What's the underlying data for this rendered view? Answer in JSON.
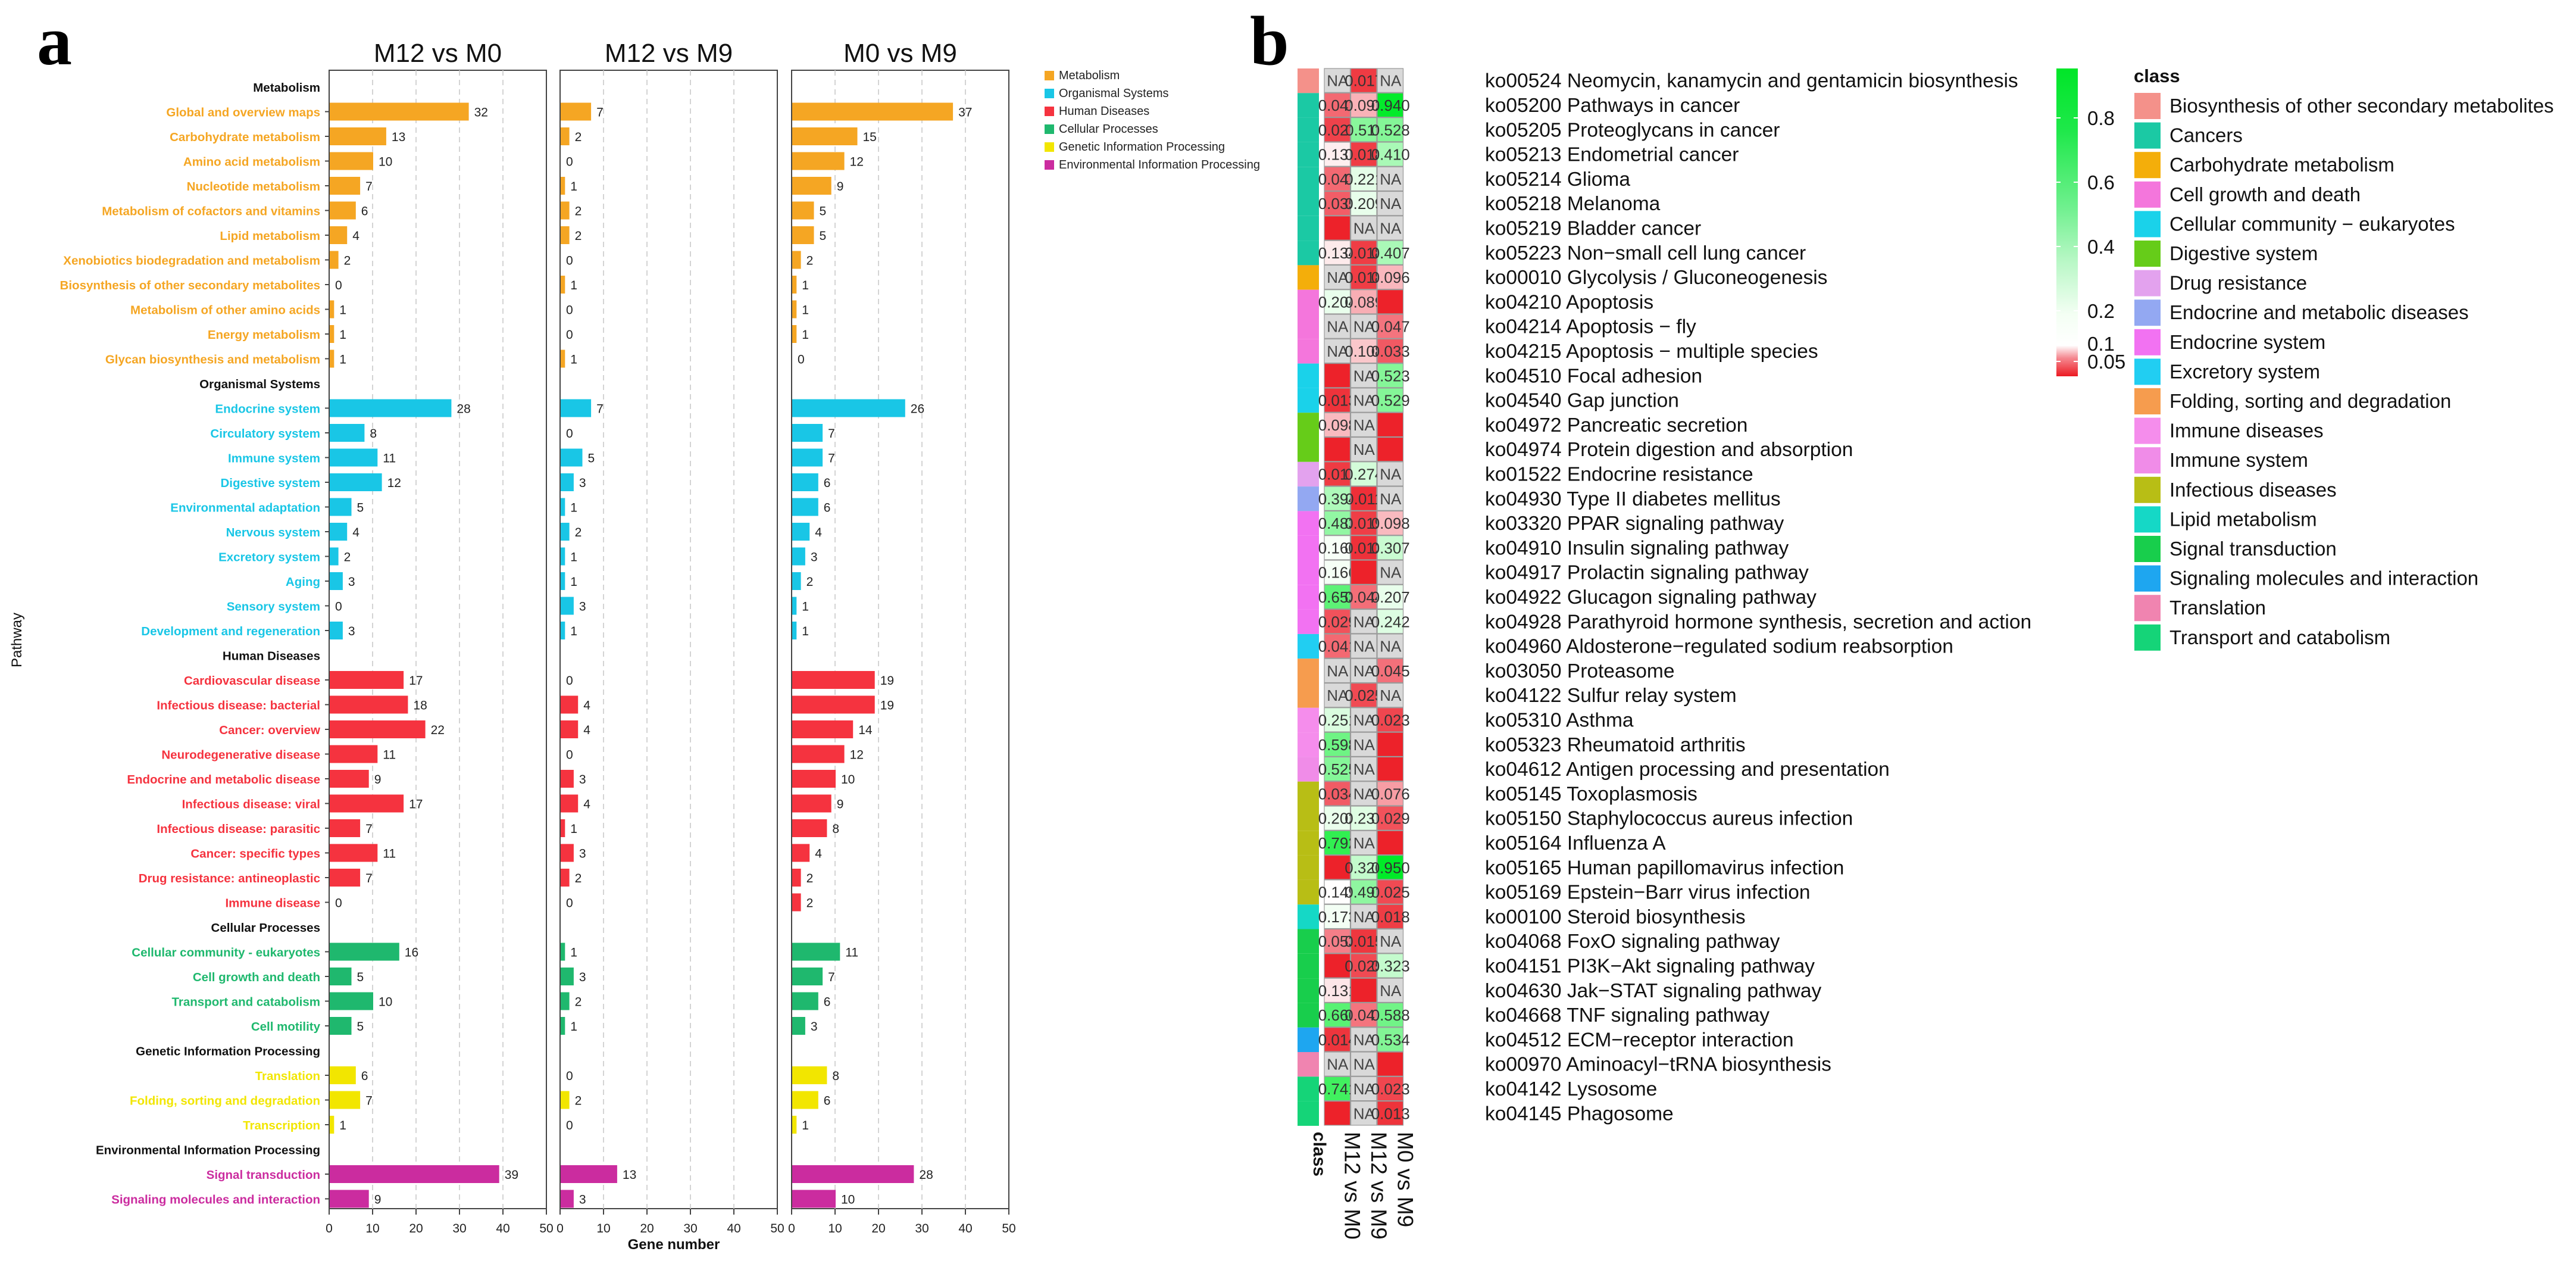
{
  "panels": {
    "a": "a",
    "b": "b"
  },
  "chart_data": [
    {
      "type": "bar",
      "title": "",
      "xlabel": "Gene number",
      "ylabel": "Pathway",
      "xlim": [
        0,
        50
      ],
      "xticks": [
        0,
        10,
        20,
        30,
        40,
        50
      ],
      "facets": [
        "M12 vs M0",
        "M12 vs M9",
        "M0 vs M9"
      ],
      "legend": [
        {
          "label": "Metabolism",
          "color": "#F5A623"
        },
        {
          "label": "Organismal Systems",
          "color": "#19C6E6"
        },
        {
          "label": "Human Diseases",
          "color": "#F5333F"
        },
        {
          "label": "Cellular Processes",
          "color": "#1FB86E"
        },
        {
          "label": "Genetic Information Processing",
          "color": "#F2E600"
        },
        {
          "label": "Environmental Information Processing",
          "color": "#CB2C9F"
        }
      ],
      "rows": [
        {
          "label": "Metabolism",
          "header": true
        },
        {
          "label": "Global and overview maps",
          "cat": 0,
          "values": [
            32,
            7,
            37
          ]
        },
        {
          "label": "Carbohydrate metabolism",
          "cat": 0,
          "values": [
            13,
            2,
            15
          ]
        },
        {
          "label": "Amino acid metabolism",
          "cat": 0,
          "values": [
            10,
            0,
            12
          ]
        },
        {
          "label": "Nucleotide metabolism",
          "cat": 0,
          "values": [
            7,
            1,
            9
          ]
        },
        {
          "label": "Metabolism of cofactors and vitamins",
          "cat": 0,
          "values": [
            6,
            2,
            5
          ]
        },
        {
          "label": "Lipid metabolism",
          "cat": 0,
          "values": [
            4,
            2,
            5
          ]
        },
        {
          "label": "Xenobiotics biodegradation and metabolism",
          "cat": 0,
          "values": [
            2,
            0,
            2
          ]
        },
        {
          "label": "Biosynthesis of other secondary metabolites",
          "cat": 0,
          "values": [
            0,
            1,
            1
          ]
        },
        {
          "label": "Metabolism of other amino acids",
          "cat": 0,
          "values": [
            1,
            0,
            1
          ]
        },
        {
          "label": "Energy metabolism",
          "cat": 0,
          "values": [
            1,
            0,
            1
          ]
        },
        {
          "label": "Glycan biosynthesis and metabolism",
          "cat": 0,
          "values": [
            1,
            1,
            0
          ]
        },
        {
          "label": "Organismal Systems",
          "header": true
        },
        {
          "label": "Endocrine system",
          "cat": 1,
          "values": [
            28,
            7,
            26
          ]
        },
        {
          "label": "Circulatory system",
          "cat": 1,
          "values": [
            8,
            0,
            7
          ]
        },
        {
          "label": "Immune system",
          "cat": 1,
          "values": [
            11,
            5,
            7
          ]
        },
        {
          "label": "Digestive system",
          "cat": 1,
          "values": [
            12,
            3,
            6
          ]
        },
        {
          "label": "Environmental adaptation",
          "cat": 1,
          "values": [
            5,
            1,
            6
          ]
        },
        {
          "label": "Nervous system",
          "cat": 1,
          "values": [
            4,
            2,
            4
          ]
        },
        {
          "label": "Excretory system",
          "cat": 1,
          "values": [
            2,
            1,
            3
          ]
        },
        {
          "label": "Aging",
          "cat": 1,
          "values": [
            3,
            1,
            2
          ]
        },
        {
          "label": "Sensory system",
          "cat": 1,
          "values": [
            0,
            3,
            1
          ]
        },
        {
          "label": "Development and regeneration",
          "cat": 1,
          "values": [
            3,
            1,
            1
          ]
        },
        {
          "label": "Human Diseases",
          "header": true
        },
        {
          "label": "Cardiovascular disease",
          "cat": 2,
          "values": [
            17,
            0,
            19
          ]
        },
        {
          "label": "Infectious disease: bacterial",
          "cat": 2,
          "values": [
            18,
            4,
            19
          ]
        },
        {
          "label": "Cancer: overview",
          "cat": 2,
          "values": [
            22,
            4,
            14
          ]
        },
        {
          "label": "Neurodegenerative disease",
          "cat": 2,
          "values": [
            11,
            0,
            12
          ]
        },
        {
          "label": "Endocrine and metabolic disease",
          "cat": 2,
          "values": [
            9,
            3,
            10
          ]
        },
        {
          "label": "Infectious disease: viral",
          "cat": 2,
          "values": [
            17,
            4,
            9
          ]
        },
        {
          "label": "Infectious disease: parasitic",
          "cat": 2,
          "values": [
            7,
            1,
            8
          ]
        },
        {
          "label": "Cancer: specific types",
          "cat": 2,
          "values": [
            11,
            3,
            4
          ]
        },
        {
          "label": "Drug resistance: antineoplastic",
          "cat": 2,
          "values": [
            7,
            2,
            2
          ]
        },
        {
          "label": "Immune disease",
          "cat": 2,
          "values": [
            0,
            0,
            2
          ]
        },
        {
          "label": "Cellular Processes",
          "header": true
        },
        {
          "label": "Cellular community - eukaryotes",
          "cat": 3,
          "values": [
            16,
            1,
            11
          ]
        },
        {
          "label": "Cell growth and death",
          "cat": 3,
          "values": [
            5,
            3,
            7
          ]
        },
        {
          "label": "Transport and catabolism",
          "cat": 3,
          "values": [
            10,
            2,
            6
          ]
        },
        {
          "label": "Cell motility",
          "cat": 3,
          "values": [
            5,
            1,
            3
          ]
        },
        {
          "label": "Genetic Information Processing",
          "header": true
        },
        {
          "label": "Translation",
          "cat": 4,
          "values": [
            6,
            0,
            8
          ]
        },
        {
          "label": "Folding, sorting and degradation",
          "cat": 4,
          "values": [
            7,
            2,
            6
          ]
        },
        {
          "label": "Transcription",
          "cat": 4,
          "values": [
            1,
            0,
            1
          ]
        },
        {
          "label": "Environmental Information Processing",
          "header": true
        },
        {
          "label": "Signal transduction",
          "cat": 5,
          "values": [
            39,
            13,
            28
          ]
        },
        {
          "label": "Signaling molecules and interaction",
          "cat": 5,
          "values": [
            9,
            3,
            10
          ]
        }
      ]
    },
    {
      "type": "heatmap",
      "columns": [
        "M12 vs M0",
        "M12 vs M9",
        "M0 vs M9"
      ],
      "class_label": "class",
      "colorbar": {
        "ticks": [
          "0.8",
          "0.6",
          "0.4",
          "0.2",
          "0.1",
          "0.05"
        ],
        "values": [
          0.8,
          0.6,
          0.4,
          0.2,
          0.1,
          0.05
        ]
      },
      "classes": [
        {
          "name": "Biosynthesis of other secondary metabolites",
          "color": "#F4918A"
        },
        {
          "name": "Cancers",
          "color": "#1BC9A4"
        },
        {
          "name": "Carbohydrate metabolism",
          "color": "#F4AE0A"
        },
        {
          "name": "Cell growth and death",
          "color": "#F476DC"
        },
        {
          "name": "Cellular community − eukaryotes",
          "color": "#1AD2EA"
        },
        {
          "name": "Digestive system",
          "color": "#66CC19"
        },
        {
          "name": "Drug resistance",
          "color": "#E3A2EE"
        },
        {
          "name": "Endocrine and metabolic diseases",
          "color": "#93A8F2"
        },
        {
          "name": "Endocrine system",
          "color": "#F272F2"
        },
        {
          "name": "Excretory system",
          "color": "#21CEF2"
        },
        {
          "name": "Folding, sorting and degradation",
          "color": "#F69C4E"
        },
        {
          "name": "Immune diseases",
          "color": "#F58DEC"
        },
        {
          "name": "Immune system",
          "color": "#F08CE8"
        },
        {
          "name": "Infectious diseases",
          "color": "#B8BE15"
        },
        {
          "name": "Lipid metabolism",
          "color": "#15D8C6"
        },
        {
          "name": "Signal transduction",
          "color": "#18CE4C"
        },
        {
          "name": "Signaling molecules and interaction",
          "color": "#1EA6F0"
        },
        {
          "name": "Translation",
          "color": "#F084B0"
        },
        {
          "name": "Transport and catabolism",
          "color": "#15D478"
        }
      ],
      "rows": [
        {
          "label": "ko00524 Neomycin, kanamycin and gentamicin biosynthesis",
          "cls": 0,
          "values": [
            null,
            0.017,
            null
          ]
        },
        {
          "label": "ko05200 Pathways in cancer",
          "cls": 1,
          "values": [
            0.041,
            0.092,
            0.94
          ]
        },
        {
          "label": "ko05205 Proteoglycans in cancer",
          "cls": 1,
          "values": [
            0.021,
            0.511,
            0.528
          ]
        },
        {
          "label": "ko05213 Endometrial cancer",
          "cls": 1,
          "values": [
            0.137,
            0.018,
            0.41
          ]
        },
        {
          "label": "ko05214 Glioma",
          "cls": 1,
          "values": [
            0.041,
            0.221,
            null
          ]
        },
        {
          "label": "ko05218 Melanoma",
          "cls": 1,
          "values": [
            0.035,
            0.209,
            null
          ]
        },
        {
          "label": "ko05219 Bladder cancer",
          "cls": 1,
          "values": [
            0.004,
            null,
            null
          ]
        },
        {
          "label": "ko05223 Non−small cell lung cancer",
          "cls": 1,
          "values": [
            0.134,
            0.018,
            0.407
          ]
        },
        {
          "label": "ko00010 Glycolysis / Gluconeogenesis",
          "cls": 2,
          "values": [
            null,
            0.018,
            0.096
          ]
        },
        {
          "label": "ko04210 Apoptosis",
          "cls": 3,
          "values": [
            0.204,
            0.089,
            0.004
          ]
        },
        {
          "label": "ko04214 Apoptosis − fly",
          "cls": 3,
          "values": [
            null,
            null,
            0.047
          ]
        },
        {
          "label": "ko04215 Apoptosis − multiple species",
          "cls": 3,
          "values": [
            null,
            0.108,
            0.033
          ]
        },
        {
          "label": "ko04510 Focal adhesion",
          "cls": 4,
          "values": [
            0.004,
            null,
            0.523
          ]
        },
        {
          "label": "ko04540 Gap junction",
          "cls": 4,
          "values": [
            0.013,
            null,
            0.529
          ]
        },
        {
          "label": "ko04972 Pancreatic secretion",
          "cls": 5,
          "values": [
            0.098,
            null,
            0.004
          ]
        },
        {
          "label": "ko04974 Protein digestion and absorption",
          "cls": 5,
          "values": [
            0.004,
            null,
            0.004
          ]
        },
        {
          "label": "ko01522 Endocrine resistance",
          "cls": 6,
          "values": [
            0.017,
            0.274,
            null
          ]
        },
        {
          "label": "ko04930 Type II diabetes mellitus",
          "cls": 7,
          "values": [
            0.394,
            0.011,
            null
          ]
        },
        {
          "label": "ko03320 PPAR signaling pathway",
          "cls": 8,
          "values": [
            0.483,
            0.019,
            0.098
          ]
        },
        {
          "label": "ko04910 Insulin signaling pathway",
          "cls": 8,
          "values": [
            0.16,
            0.012,
            0.307
          ]
        },
        {
          "label": "ko04917 Prolactin signaling pathway",
          "cls": 8,
          "values": [
            0.166,
            0.004,
            null
          ]
        },
        {
          "label": "ko04922 Glucagon signaling pathway",
          "cls": 8,
          "values": [
            0.653,
            0.044,
            0.207
          ]
        },
        {
          "label": "ko04928 Parathyroid hormone synthesis, secretion and action",
          "cls": 8,
          "values": [
            0.029,
            null,
            0.242
          ]
        },
        {
          "label": "ko04960 Aldosterone−regulated sodium reabsorption",
          "cls": 9,
          "values": [
            0.041,
            null,
            null
          ]
        },
        {
          "label": "ko03050 Proteasome",
          "cls": 10,
          "values": [
            null,
            null,
            0.045
          ]
        },
        {
          "label": "ko04122 Sulfur relay system",
          "cls": 10,
          "values": [
            null,
            0.025,
            null
          ]
        },
        {
          "label": "ko05310 Asthma",
          "cls": 11,
          "values": [
            0.251,
            null,
            0.023
          ]
        },
        {
          "label": "ko05323 Rheumatoid arthritis",
          "cls": 11,
          "values": [
            0.598,
            null,
            0.004
          ]
        },
        {
          "label": "ko04612 Antigen processing and presentation",
          "cls": 12,
          "values": [
            0.525,
            null,
            0.004
          ]
        },
        {
          "label": "ko05145 Toxoplasmosis",
          "cls": 13,
          "values": [
            0.034,
            null,
            0.076
          ]
        },
        {
          "label": "ko05150 Staphylococcus aureus infection",
          "cls": 13,
          "values": [
            0.202,
            0.237,
            0.029
          ]
        },
        {
          "label": "ko05164 Influenza A",
          "cls": 13,
          "values": [
            0.792,
            null,
            0.004
          ]
        },
        {
          "label": "ko05165 Human papillomavirus infection",
          "cls": 13,
          "values": [
            0.004,
            0.326,
            0.95
          ]
        },
        {
          "label": "ko05169 Epstein−Barr virus infection",
          "cls": 13,
          "values": [
            0.149,
            0.491,
            0.025
          ]
        },
        {
          "label": "ko00100 Steroid biosynthesis",
          "cls": 14,
          "values": [
            0.173,
            null,
            0.018
          ]
        },
        {
          "label": "ko04068 FoxO signaling pathway",
          "cls": 15,
          "values": [
            0.053,
            0.015,
            null
          ]
        },
        {
          "label": "ko04151 PI3K−Akt signaling pathway",
          "cls": 15,
          "values": [
            0.004,
            0.025,
            0.323
          ]
        },
        {
          "label": "ko04630 Jak−STAT signaling pathway",
          "cls": 15,
          "values": [
            0.131,
            0.004,
            null
          ]
        },
        {
          "label": "ko04668 TNF signaling pathway",
          "cls": 15,
          "values": [
            0.666,
            0.047,
            0.588
          ]
        },
        {
          "label": "ko04512 ECM−receptor interaction",
          "cls": 16,
          "values": [
            0.014,
            null,
            0.534
          ]
        },
        {
          "label": "ko00970 Aminoacyl−tRNA biosynthesis",
          "cls": 17,
          "values": [
            null,
            null,
            0.004
          ]
        },
        {
          "label": "ko04142 Lysosome",
          "cls": 18,
          "values": [
            0.741,
            null,
            0.023
          ]
        },
        {
          "label": "ko04145 Phagosome",
          "cls": 18,
          "values": [
            0.004,
            null,
            0.013
          ]
        }
      ],
      "hidden_threshold": 0.01,
      "na_text": "NA"
    }
  ]
}
